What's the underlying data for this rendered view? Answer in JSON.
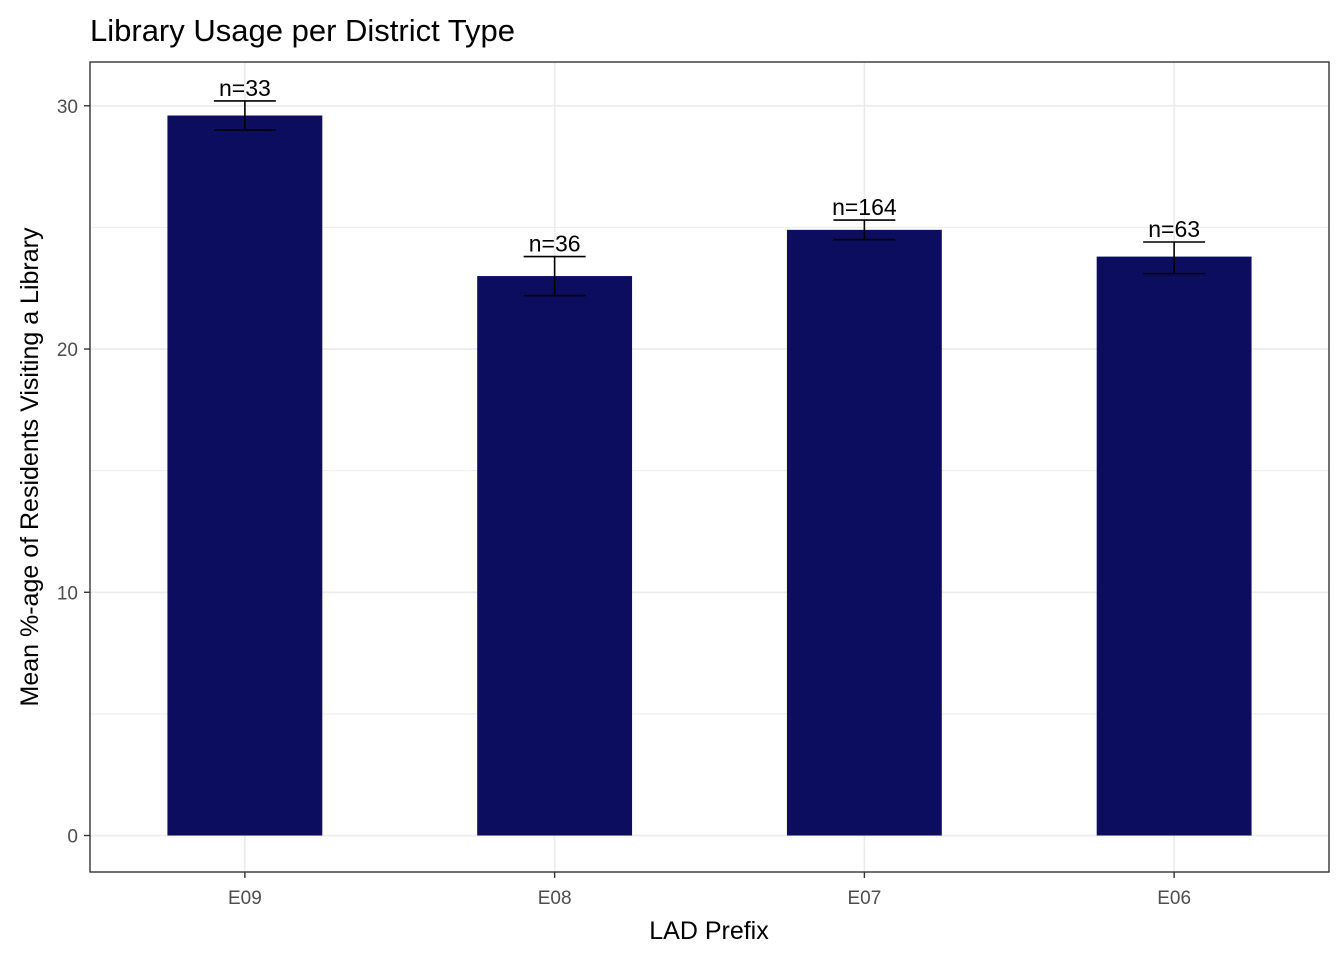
{
  "chart_data": {
    "type": "bar",
    "title": "Library Usage per District Type",
    "xlabel": "LAD Prefix",
    "ylabel": "Mean %-age of Residents Visiting a Library",
    "categories": [
      "E09",
      "E08",
      "E07",
      "E06"
    ],
    "values": [
      29.6,
      23.0,
      24.9,
      23.8
    ],
    "error_low": [
      29.0,
      22.2,
      24.5,
      23.1
    ],
    "error_high": [
      30.2,
      23.8,
      25.3,
      24.4
    ],
    "labels": [
      "n=33",
      "n=36",
      "n=164",
      "n=63"
    ],
    "y_ticks": [
      0,
      10,
      20,
      30
    ],
    "ylim": [
      -1.5,
      31.8
    ],
    "grid": true,
    "legend": "none",
    "bar_color": "#0d0d60",
    "grid_color": "#ebebeb",
    "panel_border_color": "#333333"
  }
}
